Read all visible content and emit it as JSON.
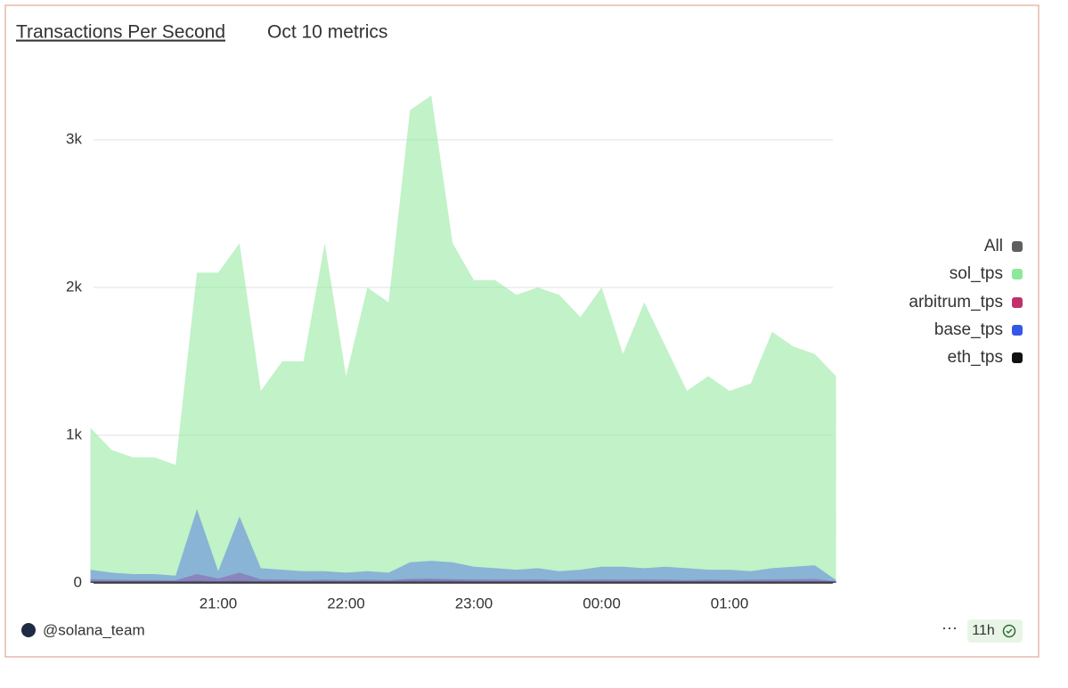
{
  "chart_data": {
    "type": "area",
    "title": "Transactions Per Second",
    "subtitle": "Oct 10 metrics",
    "x": [
      "20:00",
      "20:10",
      "20:20",
      "20:30",
      "20:40",
      "20:50",
      "21:00",
      "21:10",
      "21:20",
      "21:30",
      "21:40",
      "21:50",
      "22:00",
      "22:10",
      "22:20",
      "22:30",
      "22:40",
      "22:50",
      "23:00",
      "23:10",
      "23:20",
      "23:30",
      "23:40",
      "23:50",
      "00:00",
      "00:10",
      "00:20",
      "00:30",
      "00:40",
      "00:50",
      "01:00",
      "01:10",
      "01:20",
      "01:30",
      "01:40",
      "01:50"
    ],
    "xticks": [
      "21:00",
      "22:00",
      "23:00",
      "00:00",
      "01:00"
    ],
    "ylim": [
      0,
      3500
    ],
    "yticks": [
      0,
      {
        "value": 1000,
        "label": "1k"
      },
      {
        "value": 2000,
        "label": "2k"
      },
      {
        "value": 3000,
        "label": "3k"
      }
    ],
    "grid": true,
    "legend_toggle": {
      "label": "All",
      "color": "#5f5f5f"
    },
    "series": [
      {
        "name": "sol_tps",
        "color": "#8ee89b",
        "values": [
          1050,
          900,
          850,
          850,
          800,
          2100,
          2100,
          2300,
          1300,
          1500,
          1500,
          2300,
          1400,
          2000,
          1900,
          3200,
          3300,
          2300,
          2050,
          2050,
          1950,
          2000,
          1950,
          1800,
          2000,
          1550,
          1900,
          1600,
          1300,
          1400,
          1300,
          1350,
          1700,
          1600,
          1550,
          1400
        ]
      },
      {
        "name": "arbitrum_tps",
        "color": "#c2306c",
        "values": [
          25,
          22,
          20,
          20,
          18,
          60,
          30,
          70,
          25,
          22,
          20,
          22,
          20,
          22,
          20,
          28,
          30,
          26,
          24,
          22,
          22,
          24,
          20,
          22,
          24,
          22,
          24,
          22,
          20,
          22,
          20,
          22,
          24,
          26,
          28,
          10
        ]
      },
      {
        "name": "base_tps",
        "color": "#3557e8",
        "values": [
          90,
          70,
          60,
          60,
          50,
          500,
          80,
          450,
          100,
          90,
          80,
          80,
          70,
          80,
          70,
          140,
          150,
          140,
          110,
          100,
          90,
          100,
          80,
          90,
          110,
          110,
          100,
          110,
          100,
          90,
          90,
          80,
          100,
          110,
          120,
          20
        ]
      },
      {
        "name": "eth_tps",
        "color": "#111111",
        "values": [
          12,
          12,
          12,
          12,
          12,
          14,
          12,
          14,
          12,
          12,
          12,
          12,
          12,
          12,
          12,
          13,
          13,
          13,
          12,
          12,
          12,
          12,
          12,
          12,
          12,
          12,
          12,
          12,
          12,
          12,
          12,
          12,
          12,
          12,
          12,
          12
        ]
      }
    ]
  },
  "footer": {
    "author": "@solana_team",
    "age": "11h"
  }
}
